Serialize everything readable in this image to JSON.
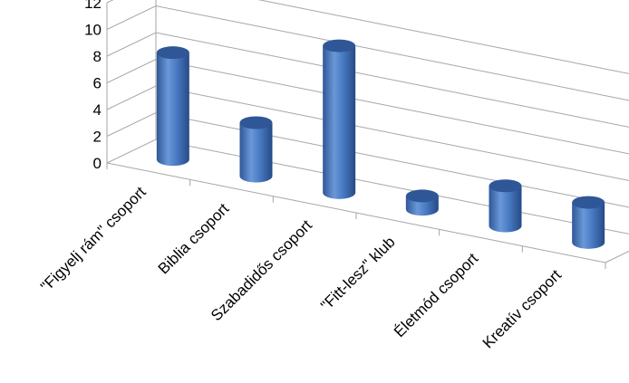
{
  "chart_data": {
    "type": "bar",
    "shape": "cylinder",
    "projection": "3d",
    "categories": [
      "\"Figyelj rám\" csoport",
      "Biblia csoport",
      "Szabadidős csoport",
      "\"Fitt-lesz\" klub",
      "Életmód csoport",
      "Kreatív csoport"
    ],
    "values": [
      8,
      4,
      11,
      1,
      3,
      3
    ],
    "ylim": [
      0,
      12
    ],
    "yticks": [
      "0",
      "2",
      "4",
      "6",
      "8",
      "10",
      "12"
    ],
    "grid": true,
    "legend": "none",
    "colors": {
      "bar_side": "#4a7cc4",
      "bar_top": "#2f5797",
      "bar_highlight": "#7ea6dc",
      "grid": "#a6a6a6"
    }
  }
}
